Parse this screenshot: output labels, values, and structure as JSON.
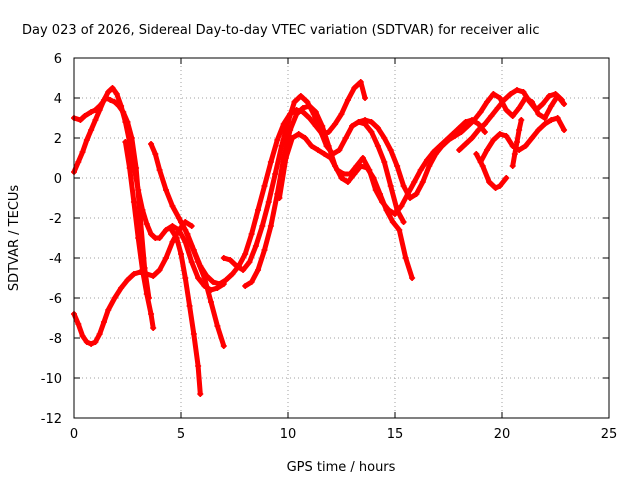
{
  "chart_data": {
    "type": "scatter",
    "title": "Day 023 of 2026, Sidereal Day-to-day VTEC variation (SDTVAR) for receiver alic",
    "xlabel": "GPS time / hours",
    "ylabel": "SDTVAR / TECUs",
    "xlim": [
      0,
      25
    ],
    "ylim": [
      -12,
      6
    ],
    "x_ticks": [
      "0",
      "5",
      "10",
      "15",
      "20",
      "25"
    ],
    "y_ticks": [
      "-12",
      "-10",
      "-8",
      "-6",
      "-4",
      "-2",
      "0",
      "2",
      "4",
      "6"
    ],
    "grid": true,
    "marker": "+",
    "color": "#ff0000",
    "series": [
      {
        "x": [
          0,
          0.3,
          0.5,
          0.8,
          1.0,
          1.2,
          1.5,
          1.7,
          1.9,
          2.1,
          2.3,
          2.5,
          2.7,
          2.9,
          3.1,
          3.3,
          3.5
        ],
        "y": [
          3.0,
          2.9,
          3.1,
          3.3,
          3.4,
          3.6,
          4.0,
          3.9,
          3.8,
          3.6,
          3.3,
          2.8,
          2.0,
          0.5,
          -2.0,
          -4.5,
          -6.0
        ]
      },
      {
        "x": [
          0,
          0.2,
          0.4,
          0.6,
          0.8,
          1.0,
          1.2,
          1.4,
          1.6,
          1.8,
          2.0,
          2.2,
          2.4,
          2.6,
          2.8,
          3.0,
          3.2,
          3.4,
          3.6,
          3.8,
          4.0,
          4.3,
          4.6,
          4.9,
          5.2,
          5.5,
          5.8,
          6.1,
          6.4,
          6.7,
          7.0
        ],
        "y": [
          0.3,
          0.8,
          1.3,
          1.9,
          2.4,
          2.9,
          3.4,
          3.9,
          4.3,
          4.5,
          4.2,
          3.6,
          2.8,
          1.8,
          0.6,
          -0.6,
          -1.6,
          -2.3,
          -2.8,
          -3.0,
          -3.0,
          -2.6,
          -2.4,
          -2.6,
          -3.2,
          -4.2,
          -5.0,
          -5.4,
          -5.6,
          -5.5,
          -5.3
        ]
      },
      {
        "x": [
          0,
          0.2,
          0.4,
          0.6,
          0.8,
          1.0,
          1.2,
          1.4,
          1.6,
          1.9,
          2.2,
          2.5,
          2.8,
          3.1,
          3.4,
          3.7,
          4.0,
          4.3,
          4.6,
          4.9,
          5.2,
          5.5
        ],
        "y": [
          -6.8,
          -7.3,
          -7.9,
          -8.2,
          -8.3,
          -8.2,
          -7.8,
          -7.2,
          -6.6,
          -6.0,
          -5.5,
          -5.1,
          -4.8,
          -4.7,
          -4.8,
          -4.9,
          -4.6,
          -4.0,
          -3.2,
          -2.6,
          -2.2,
          -2.4
        ]
      },
      {
        "x": [
          2.4,
          2.6,
          2.8,
          3.0,
          3.2,
          3.4,
          3.6,
          3.7
        ],
        "y": [
          1.8,
          0.5,
          -1.2,
          -3.0,
          -4.6,
          -5.8,
          -6.8,
          -7.5
        ]
      },
      {
        "x": [
          3.6,
          3.8,
          4.0,
          4.3,
          4.6,
          4.9,
          5.2,
          5.5,
          5.8,
          6.1,
          6.4,
          6.7,
          7.0
        ],
        "y": [
          1.7,
          1.2,
          0.4,
          -0.6,
          -1.4,
          -2.0,
          -2.6,
          -3.4,
          -4.2,
          -5.0,
          -6.2,
          -7.4,
          -8.4
        ]
      },
      {
        "x": [
          4.5,
          4.8,
          5.0,
          5.2,
          5.4,
          5.6,
          5.8,
          5.9
        ],
        "y": [
          -2.5,
          -3.0,
          -3.8,
          -5.0,
          -6.4,
          -7.8,
          -9.4,
          -10.8
        ]
      },
      {
        "x": [
          5.0,
          5.3,
          5.6,
          5.9,
          6.2,
          6.5,
          6.8,
          7.1,
          7.4,
          7.7,
          8.0,
          8.3,
          8.6,
          8.9,
          9.2,
          9.5,
          9.8,
          10.1,
          10.4,
          10.7,
          11.0,
          11.3,
          11.6,
          11.9,
          12.2,
          12.5,
          12.8,
          13.1,
          13.4,
          13.6
        ],
        "y": [
          -2.2,
          -2.8,
          -3.6,
          -4.4,
          -4.9,
          -5.2,
          -5.3,
          -5.1,
          -4.8,
          -4.4,
          -3.8,
          -2.8,
          -1.6,
          -0.4,
          0.8,
          1.9,
          2.7,
          3.2,
          3.4,
          3.3,
          3.0,
          2.6,
          2.2,
          2.3,
          2.7,
          3.2,
          3.9,
          4.5,
          4.8,
          4.0
        ]
      },
      {
        "x": [
          7.0,
          7.3,
          7.6,
          7.9,
          8.2,
          8.5,
          8.8,
          9.1,
          9.4,
          9.7,
          10.0,
          10.3,
          10.6,
          10.9,
          11.2,
          11.5,
          11.8,
          12.1,
          12.4,
          12.7,
          13.0,
          13.3,
          13.6,
          13.9,
          14.2,
          14.5,
          14.8,
          15.1,
          15.4
        ],
        "y": [
          -4.0,
          -4.1,
          -4.4,
          -4.6,
          -4.2,
          -3.4,
          -2.4,
          -1.2,
          0.2,
          1.6,
          2.8,
          3.8,
          4.1,
          3.8,
          3.2,
          2.4,
          1.6,
          1.2,
          1.4,
          2.0,
          2.6,
          2.8,
          2.7,
          2.3,
          1.6,
          0.8,
          -0.4,
          -1.6,
          -2.2
        ]
      },
      {
        "x": [
          8.0,
          8.3,
          8.6,
          8.9,
          9.2,
          9.5,
          9.8,
          10.1,
          10.4,
          10.7,
          11.0,
          11.3,
          11.6,
          11.9,
          12.2,
          12.5,
          12.8,
          13.1,
          13.4,
          13.7,
          14.0,
          14.3,
          14.6,
          14.9,
          15.2,
          15.5,
          15.8
        ],
        "y": [
          -5.4,
          -5.2,
          -4.6,
          -3.6,
          -2.4,
          -0.8,
          1.0,
          2.4,
          3.2,
          3.5,
          3.6,
          3.3,
          2.6,
          1.6,
          0.6,
          0.0,
          -0.2,
          0.2,
          0.6,
          0.5,
          0.0,
          -0.8,
          -1.6,
          -2.2,
          -2.6,
          -4.0,
          -5.0
        ]
      },
      {
        "x": [
          9.6,
          9.9,
          10.2,
          10.5,
          10.8,
          11.1,
          11.4,
          11.7,
          12.0,
          12.3,
          12.6,
          12.9,
          13.2,
          13.5,
          13.8,
          14.1,
          14.4,
          14.7,
          15.0,
          15.3,
          15.6,
          15.9,
          16.2,
          16.5,
          16.8,
          17.1,
          17.4,
          17.7,
          18.0,
          18.3,
          18.6,
          18.9,
          19.2
        ],
        "y": [
          -1.0,
          1.0,
          2.0,
          2.2,
          2.0,
          1.6,
          1.4,
          1.2,
          1.0,
          0.4,
          0.2,
          0.2,
          0.6,
          1.0,
          0.4,
          -0.6,
          -1.2,
          -1.6,
          -1.8,
          -1.4,
          -0.8,
          -0.2,
          0.4,
          0.9,
          1.3,
          1.6,
          1.9,
          2.2,
          2.5,
          2.8,
          2.9,
          2.7,
          2.3
        ]
      },
      {
        "x": [
          13.0,
          13.3,
          13.6,
          13.9,
          14.2,
          14.5,
          14.8,
          15.1,
          15.4,
          15.7,
          16.0,
          16.3,
          16.6,
          16.9,
          17.2,
          17.5,
          17.8,
          18.1,
          18.4,
          18.7,
          19.0,
          19.3,
          19.6,
          19.9,
          20.2,
          20.5,
          20.8,
          21.1,
          21.4,
          21.7,
          22.0,
          22.3,
          22.6,
          22.9
        ],
        "y": [
          2.6,
          2.8,
          2.9,
          2.8,
          2.5,
          2.0,
          1.4,
          0.6,
          -0.4,
          -1.0,
          -0.8,
          -0.2,
          0.6,
          1.2,
          1.6,
          1.9,
          2.1,
          2.3,
          2.6,
          2.9,
          3.3,
          3.8,
          4.2,
          4.0,
          3.4,
          3.1,
          3.5,
          4.0,
          3.8,
          3.2,
          3.0,
          3.6,
          4.1,
          3.7
        ]
      },
      {
        "x": [
          18.0,
          18.3,
          18.6,
          18.9,
          19.2,
          19.5,
          19.8,
          20.1,
          20.4,
          20.7,
          21.0,
          21.3,
          21.6,
          21.9,
          22.2,
          22.5,
          22.8
        ],
        "y": [
          1.4,
          1.7,
          2.0,
          2.4,
          2.7,
          3.1,
          3.5,
          3.9,
          4.2,
          4.4,
          4.3,
          3.8,
          3.4,
          3.7,
          4.1,
          4.2,
          3.9
        ]
      },
      {
        "x": [
          19.0,
          19.3,
          19.6,
          19.9,
          20.2,
          20.5,
          20.8,
          21.1,
          21.4,
          21.7,
          22.0,
          22.3,
          22.6,
          22.9
        ],
        "y": [
          0.8,
          1.4,
          1.9,
          2.2,
          2.1,
          1.6,
          1.4,
          1.6,
          2.0,
          2.4,
          2.7,
          2.9,
          3.0,
          2.4
        ]
      },
      {
        "x": [
          18.8,
          19.1,
          19.4,
          19.7,
          19.9,
          20.2
        ],
        "y": [
          1.2,
          0.6,
          -0.2,
          -0.5,
          -0.4,
          0.0
        ]
      },
      {
        "x": [
          20.5,
          20.6,
          20.7,
          20.8,
          20.9
        ],
        "y": [
          0.6,
          1.2,
          1.8,
          2.4,
          2.9
        ]
      }
    ]
  }
}
